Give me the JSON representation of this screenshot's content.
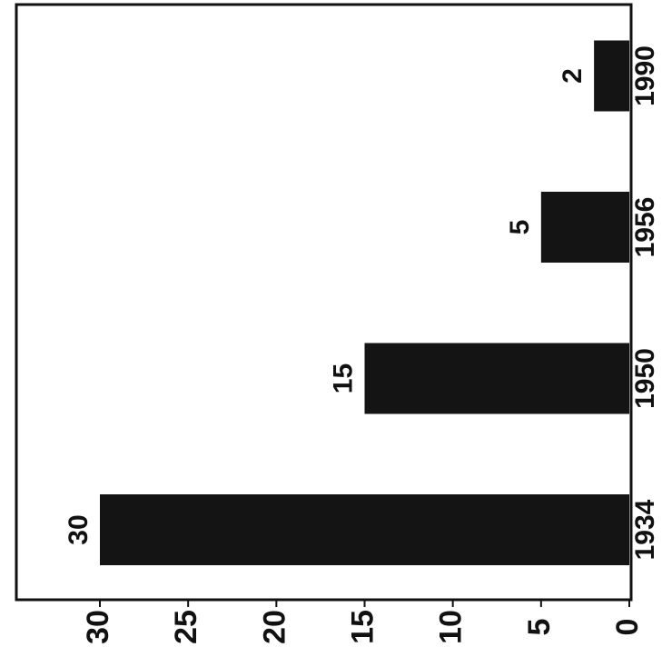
{
  "chart_data": {
    "type": "bar",
    "categories": [
      "1934",
      "1950",
      "1956",
      "1990"
    ],
    "values": [
      30,
      15,
      5,
      2
    ],
    "color": "#141414",
    "ylim": [
      0,
      30
    ],
    "yticks": [
      0,
      5,
      10,
      15,
      20,
      25,
      30
    ],
    "grid": false,
    "value_labels_shown": true
  }
}
